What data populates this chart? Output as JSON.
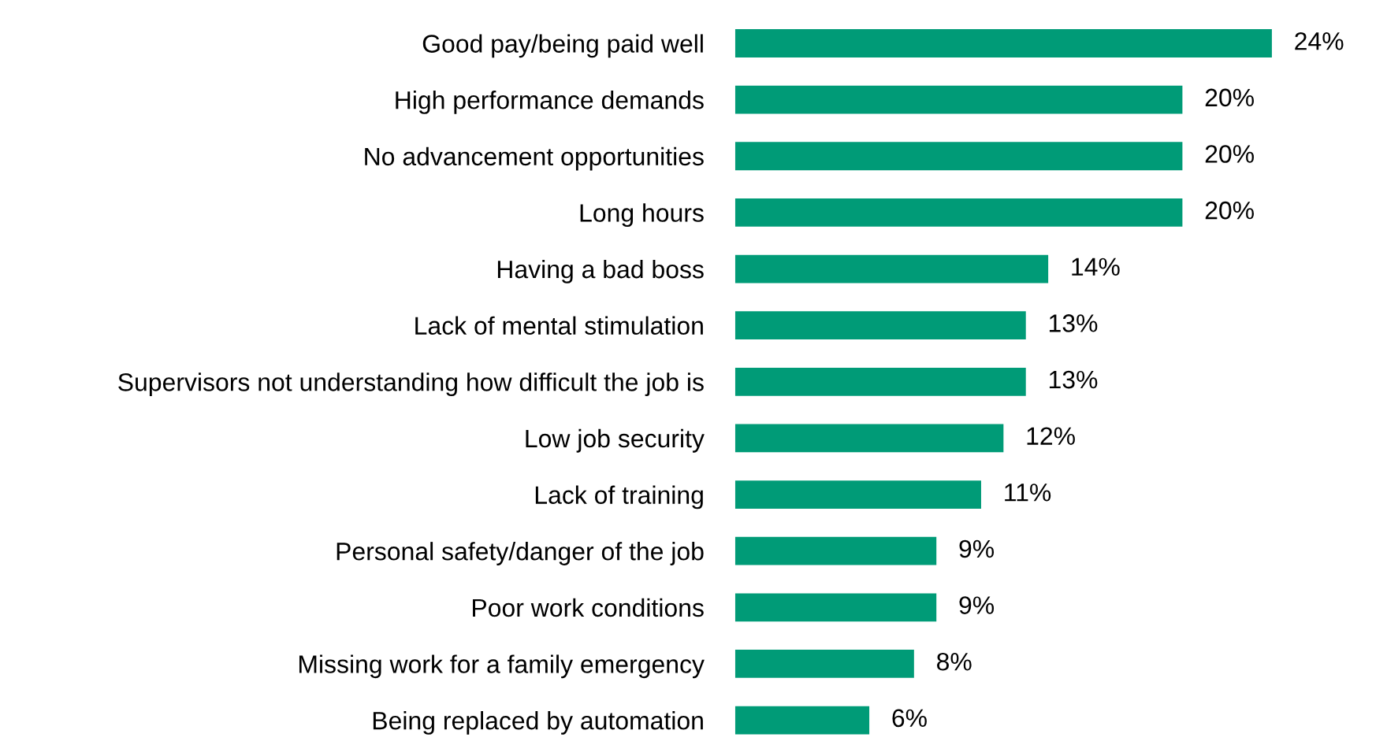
{
  "chart_data": {
    "type": "bar",
    "orientation": "horizontal",
    "color": "#009b77",
    "categories": [
      "Good pay/being paid well",
      "High performance demands",
      "No advancement opportunities",
      "Long hours",
      "Having a bad boss",
      "Lack of mental stimulation",
      "Supervisors not understanding how difficult the job is",
      "Low job security",
      "Lack of training",
      "Personal safety/danger of the job",
      "Poor work conditions",
      "Missing work for a family emergency",
      "Being replaced by automation"
    ],
    "values": [
      24,
      20,
      20,
      20,
      14,
      13,
      13,
      12,
      11,
      9,
      9,
      8,
      6
    ],
    "value_labels": [
      "24%",
      "20%",
      "20%",
      "20%",
      "14%",
      "13%",
      "13%",
      "12%",
      "11%",
      "9%",
      "9%",
      "8%",
      "6%"
    ],
    "grid": false,
    "legend": false
  }
}
